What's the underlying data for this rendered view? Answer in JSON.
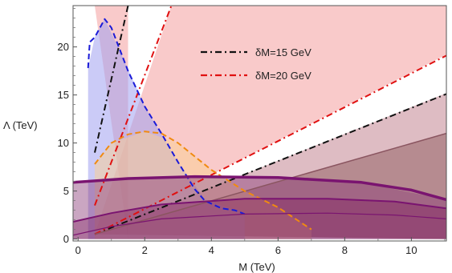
{
  "chart_data": {
    "type": "line",
    "xlabel": "M (TeV)",
    "ylabel": "Λ (TeV)",
    "xlim": [
      -0.15,
      11.05
    ],
    "ylim": [
      -0.2,
      24.3
    ],
    "xticks": [
      0,
      2,
      4,
      6,
      8,
      10
    ],
    "yticks": [
      0,
      5,
      10,
      15,
      20
    ],
    "grid": false,
    "legend_position": "top-center",
    "legend": [
      {
        "label": "δM=15 GeV",
        "color": "#111111",
        "dash": "dashdot"
      },
      {
        "label": "δM=20 GeV",
        "color": "#e01010",
        "dash": "dashdot"
      }
    ],
    "regions": [
      {
        "color": "#f08080",
        "opacity": 0.42,
        "points": [
          [
            0.5,
            24.3
          ],
          [
            1.5,
            24.3
          ],
          [
            1.5,
            0
          ]
        ]
      },
      {
        "color": "#f08080",
        "opacity": 0.42,
        "points": [
          [
            0.5,
            0.5
          ],
          [
            2.8,
            24.3
          ],
          [
            11.05,
            24.3
          ],
          [
            11.05,
            19.2
          ]
        ]
      },
      {
        "color": "#b06070",
        "opacity": 0.42,
        "points": [
          [
            0.5,
            0.5
          ],
          [
            11.05,
            15.2
          ],
          [
            11.05,
            0
          ]
        ]
      },
      {
        "color": "#5a1a1a",
        "opacity": 0.3,
        "points": [
          [
            0.5,
            0.5
          ],
          [
            11.05,
            11.0
          ],
          [
            11.05,
            0
          ]
        ]
      },
      {
        "color": "#a0a0f0",
        "opacity": 0.55,
        "points": [
          [
            0.3,
            17.8
          ],
          [
            0.5,
            21.0
          ],
          [
            0.8,
            22.9
          ],
          [
            1.2,
            20.0
          ],
          [
            2.0,
            13.8
          ],
          [
            3.0,
            8.0
          ],
          [
            3.8,
            4.2
          ],
          [
            4.7,
            3.0
          ],
          [
            5.0,
            2.6
          ],
          [
            5.0,
            0
          ],
          [
            0.3,
            0
          ]
        ]
      },
      {
        "color": "#fbcf90",
        "opacity": 0.5,
        "points": [
          [
            0.5,
            7.8
          ],
          [
            1.0,
            10.0
          ],
          [
            2.0,
            11.2
          ],
          [
            3.0,
            10.0
          ],
          [
            4.0,
            7.2
          ],
          [
            5.0,
            5.0
          ],
          [
            6.0,
            3.3
          ],
          [
            7.0,
            1.0
          ],
          [
            7.0,
            0
          ],
          [
            0.5,
            0
          ]
        ]
      },
      {
        "color": "#8a3a78",
        "opacity": 0.45,
        "points": [
          [
            -0.15,
            5.9
          ],
          [
            1.5,
            6.3
          ],
          [
            3.5,
            6.5
          ],
          [
            6.0,
            6.4
          ],
          [
            8.5,
            5.9
          ],
          [
            11.05,
            4.1
          ],
          [
            11.05,
            0
          ],
          [
            -0.15,
            0
          ]
        ]
      },
      {
        "color": "#7a1458",
        "opacity": 0.35,
        "points": [
          [
            -0.15,
            1.8
          ],
          [
            1.0,
            2.7
          ],
          [
            2.5,
            3.6
          ],
          [
            5.0,
            4.2
          ],
          [
            7.5,
            4.2
          ],
          [
            9.5,
            3.9
          ],
          [
            11.05,
            3.2
          ],
          [
            11.05,
            0
          ],
          [
            -0.15,
            0
          ]
        ]
      }
    ],
    "lines": [
      {
        "name": "",
        "color": "#111111",
        "dash": "dashdot",
        "width": 2,
        "points": [
          [
            0.5,
            9.0
          ],
          [
            1.5,
            24.3
          ]
        ]
      },
      {
        "name": "",
        "color": "#111111",
        "dash": "dashdot",
        "width": 2,
        "points": [
          [
            0.5,
            0.5
          ],
          [
            11.05,
            15.1
          ]
        ]
      },
      {
        "name": "",
        "color": "#e01010",
        "dash": "dashdot",
        "width": 2,
        "points": [
          [
            0.5,
            3.5
          ],
          [
            2.8,
            24.3
          ]
        ]
      },
      {
        "name": "",
        "color": "#e01010",
        "dash": "dashdot",
        "width": 2,
        "points": [
          [
            0.5,
            0.5
          ],
          [
            11.05,
            19.1
          ]
        ]
      },
      {
        "name": "",
        "color": "#8a5560",
        "dash": "solid",
        "width": 1.5,
        "points": [
          [
            0.5,
            0.5
          ],
          [
            11.05,
            11.0
          ]
        ]
      },
      {
        "name": "",
        "color": "#1a1ad8",
        "dash": "dashed",
        "width": 2,
        "points": [
          [
            0.3,
            17.8
          ],
          [
            0.35,
            20.5
          ],
          [
            0.5,
            21.0
          ],
          [
            0.8,
            22.9
          ],
          [
            1.0,
            22.0
          ],
          [
            1.5,
            17.5
          ],
          [
            2.0,
            13.8
          ],
          [
            2.5,
            11.0
          ],
          [
            3.0,
            8.0
          ],
          [
            3.5,
            5.2
          ],
          [
            3.8,
            4.0
          ],
          [
            4.3,
            3.2
          ],
          [
            4.7,
            3.0
          ],
          [
            5.0,
            2.6
          ]
        ]
      },
      {
        "name": "",
        "color": "#f08a10",
        "dash": "dashed",
        "width": 2,
        "points": [
          [
            0.5,
            7.8
          ],
          [
            1.0,
            10.0
          ],
          [
            1.5,
            10.9
          ],
          [
            2.0,
            11.2
          ],
          [
            2.5,
            11.0
          ],
          [
            3.0,
            10.0
          ],
          [
            3.5,
            8.6
          ],
          [
            4.0,
            7.2
          ],
          [
            5.0,
            5.0
          ],
          [
            6.0,
            3.3
          ],
          [
            7.0,
            1.0
          ]
        ]
      },
      {
        "name": "",
        "color": "#7a1470",
        "dash": "solid",
        "width": 3.5,
        "points": [
          [
            -0.15,
            5.9
          ],
          [
            1.5,
            6.3
          ],
          [
            3.5,
            6.5
          ],
          [
            6.0,
            6.4
          ],
          [
            8.5,
            5.9
          ],
          [
            10.0,
            5.1
          ],
          [
            11.05,
            4.1
          ]
        ]
      },
      {
        "name": "",
        "color": "#7a1470",
        "dash": "solid",
        "width": 2,
        "points": [
          [
            -0.15,
            1.8
          ],
          [
            1.0,
            2.7
          ],
          [
            2.5,
            3.6
          ],
          [
            5.0,
            4.2
          ],
          [
            7.5,
            4.2
          ],
          [
            9.5,
            3.9
          ],
          [
            11.05,
            3.2
          ]
        ]
      },
      {
        "name": "",
        "color": "#7a1470",
        "dash": "solid",
        "width": 1.2,
        "points": [
          [
            -0.15,
            0.4
          ],
          [
            1.0,
            1.3
          ],
          [
            2.5,
            2.1
          ],
          [
            5.0,
            2.6
          ],
          [
            7.5,
            2.7
          ],
          [
            9.5,
            2.5
          ],
          [
            11.05,
            2.1
          ]
        ]
      }
    ]
  }
}
